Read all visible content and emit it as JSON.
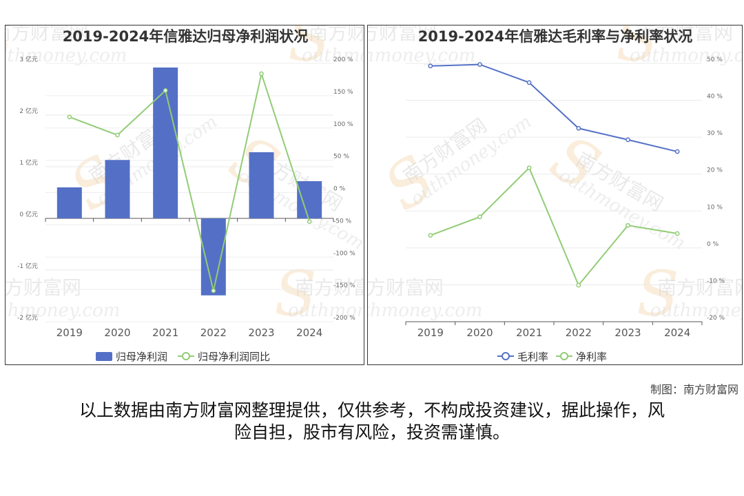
{
  "chart_data": [
    {
      "type": "bar",
      "title": "2019-2024年信雅达归母净利润状况",
      "categories": [
        "2019",
        "2020",
        "2021",
        "2022",
        "2023",
        "2024"
      ],
      "series": [
        {
          "name": "归母净利润",
          "type": "bar",
          "axis": "left",
          "values": [
            0.6,
            1.13,
            2.92,
            -1.49,
            1.28,
            0.72
          ],
          "color": "#5470c6"
        },
        {
          "name": "归母净利润同比",
          "type": "line",
          "axis": "right",
          "values": [
            117,
            89,
            158,
            -152,
            184,
            -45
          ],
          "color": "#91cc75"
        }
      ],
      "left_axis": {
        "ylim": [
          -2,
          3
        ],
        "ticks": [
          3,
          2,
          1,
          0,
          -1,
          -2
        ],
        "tick_labels": [
          "3 亿元",
          "2 亿元",
          "1 亿元",
          "0 亿元",
          "-1 亿元",
          "-2 亿元"
        ]
      },
      "right_axis": {
        "ylim": [
          -200,
          200
        ],
        "ticks": [
          200,
          150,
          100,
          50,
          0,
          -50,
          -100,
          -150,
          -200
        ],
        "tick_labels": [
          "200 %",
          "150 %",
          "100 %",
          "50 %",
          "0 %",
          "-50 %",
          "-100 %",
          "-150 %",
          "-200 %"
        ]
      },
      "legend": "bottom",
      "grid": true
    },
    {
      "type": "line",
      "title": "2019-2024年信雅达毛利率与净利率状况",
      "categories": [
        "2019",
        "2020",
        "2021",
        "2022",
        "2023",
        "2024"
      ],
      "series": [
        {
          "name": "毛利率",
          "values": [
            49.3,
            49.7,
            44.8,
            32.4,
            29.3,
            26.1
          ],
          "color": "#5470c6"
        },
        {
          "name": "净利率",
          "values": [
            3.4,
            8.4,
            21.7,
            -10.1,
            6.1,
            3.9
          ],
          "color": "#91cc75"
        }
      ],
      "right_axis": {
        "ylim": [
          -20,
          50
        ],
        "ticks": [
          50,
          40,
          30,
          20,
          10,
          0,
          -10,
          -20
        ],
        "tick_labels": [
          "50 %",
          "40 %",
          "30 %",
          "20 %",
          "10 %",
          "0 %",
          "-10 %",
          "-20 %"
        ]
      },
      "legend": "bottom",
      "grid": true
    }
  ],
  "watermark": {
    "cn": "南方财富网",
    "en": "outhmoney.com",
    "s": "S"
  },
  "credit": "制图：南方财富网",
  "disclaimer_line1": "以上数据由南方财富网整理提供，仅供参考，不构成投资建议，据此操作，风",
  "disclaimer_line2": "险自担，股市有风险，投资需谨慎。"
}
